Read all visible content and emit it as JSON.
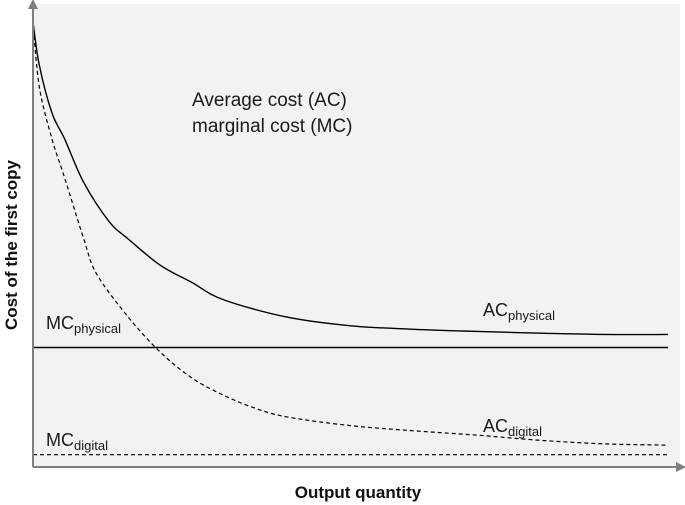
{
  "chart_data": {
    "type": "line",
    "title": "",
    "xlabel": "Output quantity",
    "ylabel": "Cost of the first copy",
    "annotation_lines": [
      "Average cost (AC)",
      "marginal cost (MC)"
    ],
    "xlim": [
      0,
      100
    ],
    "ylim": [
      0,
      100
    ],
    "grid": false,
    "series": [
      {
        "name": "AC",
        "subscript": "physical",
        "style": "solid",
        "x": [
          0,
          1,
          3,
          5,
          8,
          12,
          15,
          20,
          25,
          30,
          40,
          50,
          60,
          70,
          80,
          90,
          100
        ],
        "y": [
          100,
          90,
          79,
          73,
          63,
          54,
          50,
          44,
          40,
          36,
          32,
          30,
          29.2,
          28.7,
          28.3,
          28,
          28
        ]
      },
      {
        "name": "MC",
        "subscript": "physical",
        "style": "solid",
        "x": [
          0,
          100
        ],
        "y": [
          25,
          25
        ]
      },
      {
        "name": "AC",
        "subscript": "digital",
        "style": "dashed",
        "x": [
          0,
          1,
          3,
          5,
          8,
          10,
          15,
          20,
          25,
          30,
          35,
          40,
          50,
          60,
          70,
          80,
          90,
          100
        ],
        "y": [
          100,
          85,
          73,
          64,
          50,
          42,
          32,
          24,
          18,
          14,
          11,
          9,
          7,
          5.8,
          4.8,
          3.6,
          2.8,
          2.5
        ]
      },
      {
        "name": "MC",
        "subscript": "digital",
        "style": "dashed",
        "x": [
          0,
          100
        ],
        "y": [
          0.3,
          0.3
        ]
      }
    ]
  },
  "colors": {
    "plot_background": "#f2f2f2",
    "axis": "#7f7f7f",
    "curve": "#000000",
    "text": "#1a1a1a"
  }
}
